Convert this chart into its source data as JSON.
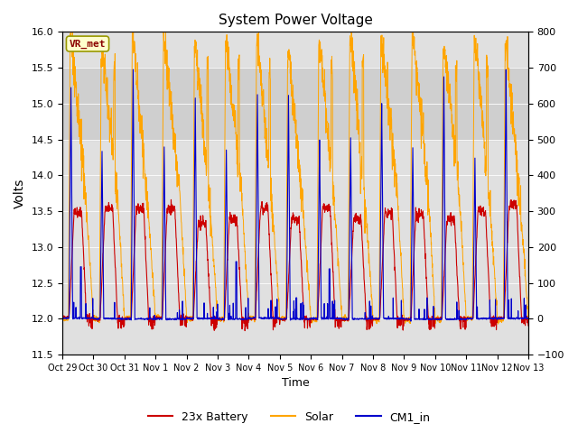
{
  "title": "System Power Voltage",
  "xlabel": "Time",
  "ylabel": "Volts",
  "ylim_left": [
    11.5,
    16.0
  ],
  "ylim_right": [
    -100,
    800
  ],
  "background_color": "#ffffff",
  "plot_bg_color": "#e0e0e0",
  "shaded_region": [
    14.5,
    15.5
  ],
  "shaded_color": "#c8c8c8",
  "xtick_labels": [
    "Oct 29",
    "Oct 30",
    "Oct 31",
    "Nov 1",
    "Nov 2",
    "Nov 3",
    "Nov 4",
    "Nov 5",
    "Nov 6",
    "Nov 7",
    "Nov 8",
    "Nov 9",
    "Nov 10",
    "Nov 11",
    "Nov 12",
    "Nov 13"
  ],
  "annotation_text": "VR_met",
  "annotation_color": "#8b0000",
  "battery_color": "#cc0000",
  "solar_color": "#ffa500",
  "cm1_color": "#0000cc",
  "legend_labels": [
    "23x Battery",
    "Solar",
    "CM1_in"
  ],
  "n_days": 15
}
